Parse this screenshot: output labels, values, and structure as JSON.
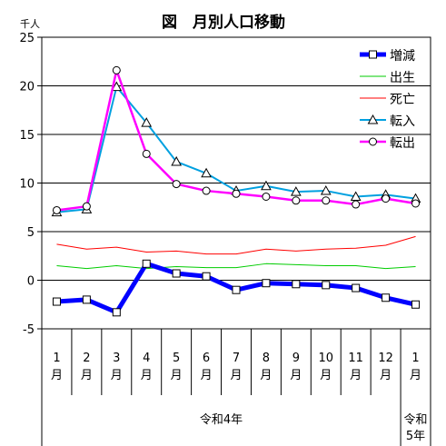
{
  "chart_data": {
    "type": "line",
    "title": "図　月別人口移動",
    "ylabel": "千人",
    "ylim": [
      -5,
      25
    ],
    "yticks": [
      -5,
      0,
      5,
      10,
      15,
      20,
      25
    ],
    "grid": true,
    "legend_position": "top-right",
    "categories": [
      "1\n月",
      "2\n月",
      "3\n月",
      "4\n月",
      "5\n月",
      "6\n月",
      "7\n月",
      "8\n月",
      "9\n月",
      "10\n月",
      "11\n月",
      "12\n月",
      "1\n月"
    ],
    "year_groups": [
      {
        "label": "令和4年",
        "span": 12
      },
      {
        "label": "令和\n5年",
        "span": 1
      }
    ],
    "series": [
      {
        "name": "増減",
        "color": "#0000ff",
        "marker": "square",
        "width": 5,
        "values": [
          -2.2,
          -2.0,
          -3.3,
          1.7,
          0.7,
          0.4,
          -1.0,
          -0.3,
          -0.4,
          -0.5,
          -0.8,
          -1.8,
          -2.5
        ]
      },
      {
        "name": "出生",
        "color": "#00cc00",
        "marker": "none",
        "width": 1,
        "values": [
          1.5,
          1.2,
          1.5,
          1.2,
          1.4,
          1.3,
          1.3,
          1.7,
          1.6,
          1.5,
          1.5,
          1.2,
          1.4
        ]
      },
      {
        "name": "死亡",
        "color": "#ff0000",
        "marker": "none",
        "width": 1,
        "values": [
          3.7,
          3.2,
          3.4,
          2.9,
          3.0,
          2.7,
          2.7,
          3.2,
          3.0,
          3.2,
          3.3,
          3.6,
          4.5
        ]
      },
      {
        "name": "転入",
        "color": "#00a0e0",
        "marker": "triangle",
        "width": 2,
        "values": [
          7.0,
          7.3,
          19.9,
          16.2,
          12.2,
          11.0,
          9.2,
          9.7,
          9.1,
          9.2,
          8.6,
          8.8,
          8.4
        ]
      },
      {
        "name": "転出",
        "color": "#ff00ff",
        "marker": "circle",
        "width": 2.5,
        "values": [
          7.2,
          7.6,
          21.6,
          13.0,
          9.9,
          9.2,
          8.9,
          8.6,
          8.2,
          8.2,
          7.8,
          8.4,
          7.9
        ]
      }
    ]
  }
}
